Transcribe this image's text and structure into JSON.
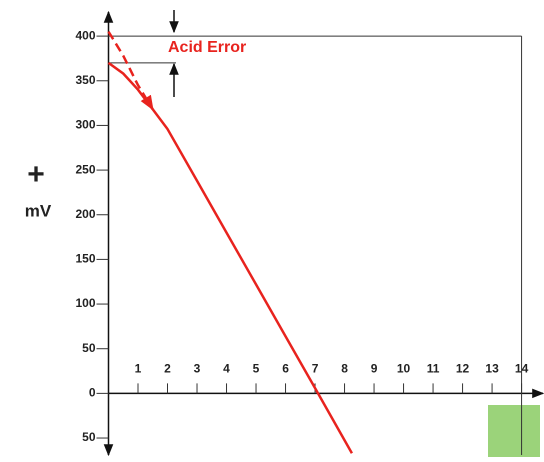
{
  "chart_data": {
    "type": "line",
    "y_label_sign": "+",
    "y_label": "mV",
    "annotation": "Acid Error",
    "xlim": [
      0,
      14.76
    ],
    "ylim": [
      -69,
      427
    ],
    "xticks": [
      1,
      2,
      3,
      4,
      5,
      6,
      7,
      8,
      9,
      10,
      11,
      12,
      13,
      14
    ],
    "yticks": [
      400,
      350,
      300,
      250,
      200,
      150,
      100,
      50,
      0,
      {
        "value": -50,
        "label": "50"
      }
    ],
    "series": [
      {
        "color": "#e8231e",
        "style": "solid",
        "x": [
          0,
          0.5,
          1,
          1.5,
          2,
          3,
          4,
          5,
          6,
          7,
          8.25
        ],
        "values": [
          370,
          358,
          340,
          318,
          296,
          238,
          180,
          122,
          64,
          6,
          -67
        ]
      },
      {
        "color": "#e8231e",
        "style": "dashed",
        "x": [
          0,
          0.5,
          1,
          1.5
        ],
        "values": [
          405,
          378,
          345,
          318
        ]
      }
    ]
  }
}
